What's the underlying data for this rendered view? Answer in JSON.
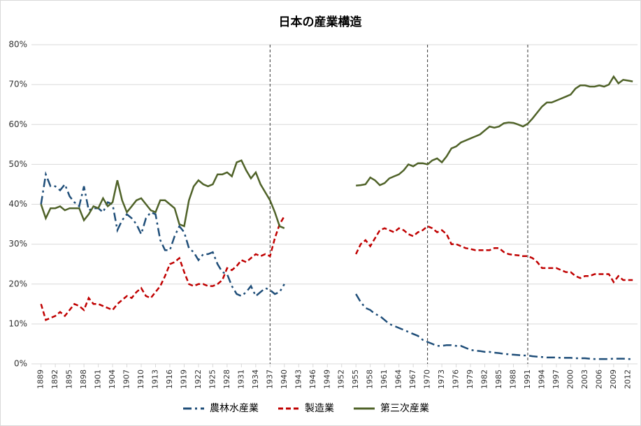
{
  "chart_data": {
    "type": "line",
    "title": "日本の産業構造",
    "x": [
      1889,
      1890,
      1891,
      1892,
      1893,
      1894,
      1895,
      1896,
      1897,
      1898,
      1899,
      1900,
      1901,
      1902,
      1903,
      1904,
      1905,
      1906,
      1907,
      1908,
      1909,
      1910,
      1911,
      1912,
      1913,
      1914,
      1915,
      1916,
      1917,
      1918,
      1919,
      1920,
      1921,
      1922,
      1923,
      1924,
      1925,
      1926,
      1927,
      1928,
      1929,
      1930,
      1931,
      1932,
      1933,
      1934,
      1935,
      1936,
      1937,
      1938,
      1939,
      1940,
      1947,
      1955,
      1956,
      1957,
      1958,
      1959,
      1960,
      1961,
      1962,
      1963,
      1964,
      1965,
      1966,
      1967,
      1968,
      1969,
      1970,
      1971,
      1972,
      1973,
      1974,
      1975,
      1976,
      1977,
      1978,
      1979,
      1980,
      1981,
      1982,
      1983,
      1984,
      1985,
      1986,
      1987,
      1988,
      1989,
      1990,
      1991,
      1992,
      1993,
      1994,
      1995,
      1996,
      1997,
      1998,
      1999,
      2000,
      2001,
      2002,
      2003,
      2004,
      2005,
      2006,
      2007,
      2008,
      2009,
      2010,
      2011,
      2012,
      2013
    ],
    "series": [
      {
        "name": "農林水産業",
        "color": "#1f4e79",
        "style": "dashdot",
        "values": [
          40,
          47.5,
          44.5,
          44.5,
          43.5,
          45,
          42,
          40.5,
          39.5,
          44.5,
          38.5,
          39,
          39,
          38,
          40.5,
          40,
          33.5,
          36,
          37.5,
          36.5,
          35,
          32.5,
          36.5,
          38,
          37.5,
          31,
          28.5,
          28.5,
          32,
          34.5,
          33,
          29,
          28,
          26,
          27.5,
          27.5,
          28,
          25,
          23,
          22.5,
          19.5,
          17.5,
          17,
          18,
          19.5,
          17,
          18,
          19,
          18.5,
          17.5,
          18,
          20,
          null,
          17.5,
          15.5,
          14,
          13.5,
          12.5,
          12,
          11,
          10,
          9.5,
          9,
          8.5,
          8,
          7.5,
          7,
          6,
          5.5,
          5,
          4.5,
          4.5,
          4.7,
          4.7,
          4.5,
          4.5,
          4,
          3.5,
          3.3,
          3.2,
          3,
          3,
          2.8,
          2.7,
          2.5,
          2.4,
          2.3,
          2.2,
          2.1,
          2.1,
          1.9,
          1.8,
          1.7,
          1.6,
          1.6,
          1.6,
          1.5,
          1.5,
          1.5,
          1.4,
          1.4,
          1.4,
          1.3,
          1.2,
          1.2,
          1.2,
          1.2,
          1.3,
          1.3,
          1.3,
          1.2,
          1.2
        ]
      },
      {
        "name": "製造業",
        "color": "#c00000",
        "style": "dashed",
        "values": [
          15,
          11,
          11.5,
          12,
          13,
          12,
          13.5,
          15,
          14.5,
          13.5,
          16.5,
          15,
          15,
          14.5,
          14,
          13.5,
          15,
          16,
          17,
          16.5,
          18,
          19,
          17,
          16.5,
          18,
          19.5,
          22,
          25,
          25.5,
          26.5,
          23,
          20,
          19.5,
          20,
          20,
          19.5,
          19.5,
          20,
          21,
          24,
          23.5,
          24.5,
          26,
          25.5,
          26.5,
          27.5,
          27,
          27.5,
          27,
          31.5,
          35,
          37,
          null,
          27.5,
          30,
          31,
          29.5,
          31.5,
          33.5,
          34,
          33.5,
          33,
          34,
          33.5,
          32.5,
          32,
          33,
          33.5,
          34.5,
          34,
          33,
          33.5,
          32.5,
          30,
          30,
          29.5,
          29,
          28.8,
          28.5,
          28.5,
          28.5,
          28.5,
          29,
          29,
          28,
          27.5,
          27.3,
          27.2,
          27,
          27,
          26.5,
          25.5,
          24,
          24,
          24,
          24,
          23.5,
          23,
          23,
          22,
          21.5,
          22,
          22,
          22.5,
          22.5,
          22.5,
          22.5,
          20.5,
          22,
          21,
          21,
          21
        ]
      },
      {
        "name": "第三次産業",
        "color": "#4f6228",
        "style": "solid",
        "values": [
          40,
          36.5,
          39,
          39,
          39.5,
          38.5,
          39,
          39,
          39,
          36,
          37.5,
          39.5,
          39,
          41.5,
          39.5,
          40.5,
          46,
          41,
          38,
          39.5,
          41,
          41.5,
          40,
          38.5,
          38,
          41,
          41,
          40,
          39,
          35,
          34.5,
          41,
          44.5,
          46,
          45,
          44.5,
          45,
          47.5,
          47.5,
          48,
          47,
          50.5,
          51,
          48.5,
          46.5,
          48,
          45,
          43,
          41,
          38,
          34.5,
          34,
          null,
          44.7,
          44.8,
          45,
          46.7,
          46,
          44.8,
          45.3,
          46.5,
          47,
          47.5,
          48.5,
          50,
          49.5,
          50.3,
          50.3,
          50,
          51,
          51.5,
          50.5,
          52,
          54,
          54.5,
          55.5,
          56,
          56.5,
          57,
          57.5,
          58.5,
          59.5,
          59.2,
          59.5,
          60.3,
          60.5,
          60.4,
          60,
          59.5,
          60.2,
          61.5,
          63,
          64.5,
          65.5,
          65.5,
          66,
          66.5,
          67,
          67.5,
          69,
          69.8,
          69.8,
          69.5,
          69.5,
          69.8,
          69.5,
          70,
          72,
          70.3,
          71.2,
          71,
          70.8
        ]
      }
    ],
    "xlim": [
      1887,
      2014
    ],
    "xticks": [
      1889,
      1892,
      1895,
      1898,
      1901,
      1904,
      1907,
      1910,
      1913,
      1916,
      1919,
      1922,
      1925,
      1928,
      1931,
      1934,
      1937,
      1940,
      1943,
      1946,
      1949,
      1952,
      1955,
      1958,
      1961,
      1964,
      1967,
      1970,
      1973,
      1976,
      1979,
      1982,
      1985,
      1988,
      1991,
      1994,
      1997,
      2000,
      2003,
      2006,
      2009,
      2012
    ],
    "ylim": [
      0,
      80
    ],
    "yticks": [
      {
        "value": 0,
        "label": "0%"
      },
      {
        "value": 10,
        "label": "10%"
      },
      {
        "value": 20,
        "label": "20%"
      },
      {
        "value": 30,
        "label": "30%"
      },
      {
        "value": 40,
        "label": "40%"
      },
      {
        "value": 50,
        "label": "50%"
      },
      {
        "value": 60,
        "label": "60%"
      },
      {
        "value": 70,
        "label": "70%"
      },
      {
        "value": 80,
        "label": "80%"
      }
    ],
    "vlines": [
      1937,
      1970,
      1991
    ],
    "grid": true
  }
}
